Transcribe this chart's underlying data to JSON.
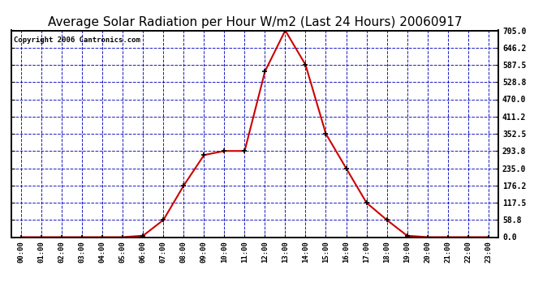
{
  "title": "Average Solar Radiation per Hour W/m2 (Last 24 Hours) 20060917",
  "copyright": "Copyright 2006 Cantronics.com",
  "hours": [
    "00:00",
    "01:00",
    "02:00",
    "03:00",
    "04:00",
    "05:00",
    "06:00",
    "07:00",
    "08:00",
    "09:00",
    "10:00",
    "11:00",
    "12:00",
    "13:00",
    "14:00",
    "15:00",
    "16:00",
    "17:00",
    "18:00",
    "19:00",
    "20:00",
    "21:00",
    "22:00",
    "23:00"
  ],
  "values": [
    0.0,
    0.0,
    0.0,
    0.0,
    0.0,
    0.0,
    5.0,
    58.8,
    176.2,
    280.0,
    293.8,
    293.8,
    565.0,
    705.0,
    587.5,
    352.5,
    235.0,
    117.5,
    58.8,
    5.0,
    0.0,
    0.0,
    0.0,
    0.0
  ],
  "yticks": [
    0.0,
    58.8,
    117.5,
    176.2,
    235.0,
    293.8,
    352.5,
    411.2,
    470.0,
    528.8,
    587.5,
    646.2,
    705.0
  ],
  "ymax": 705.0,
  "ymin": 0.0,
  "line_color": "#cc0000",
  "marker_color": "#000000",
  "bg_color": "#ffffff",
  "plot_bg_color": "#ffffff",
  "grid_color": "#0000bb",
  "title_fontsize": 11,
  "copyright_fontsize": 6.5,
  "tick_color": "#000000",
  "tick_label_color": "#000000"
}
